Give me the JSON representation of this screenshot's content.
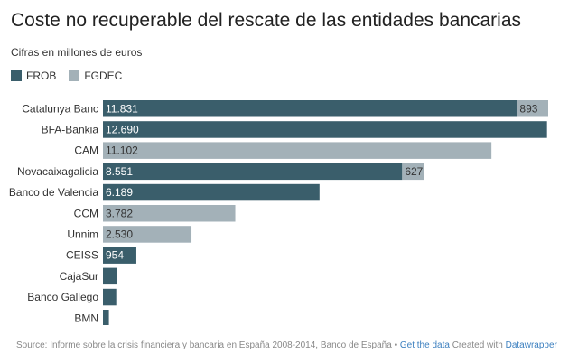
{
  "title": "Coste no recuperable del rescate de las entidades bancarias",
  "subtitle": "Cifras en millones de euros",
  "colors": {
    "FROB": "#3a5e6b",
    "FGDEC": "#a3b1b8"
  },
  "footer": {
    "source": "Source: Informe sobre la crisis financiera y bancaria en España 2008-2014, Banco de España",
    "separator": " • ",
    "get_data": "Get the data",
    "created_with": " Created with ",
    "tool": "Datawrapper"
  },
  "chart_data": {
    "type": "bar",
    "orientation": "horizontal",
    "stacked": true,
    "title": "Coste no recuperable del rescate de las entidades bancarias",
    "subtitle": "Cifras en millones de euros",
    "legend_position": "top-left",
    "grid": false,
    "xlim": [
      0,
      12724
    ],
    "categories": [
      "Catalunya Banc",
      "BFA-Bankia",
      "CAM",
      "Novacaixagalicia",
      "Banco de Valencia",
      "CCM",
      "Unnim",
      "CEISS",
      "CajaSur",
      "Banco Gallego",
      "BMN"
    ],
    "series": [
      {
        "name": "FROB",
        "values": [
          11831,
          12690,
          0,
          8551,
          6189,
          0,
          0,
          954,
          392,
          380,
          170
        ],
        "labels": [
          "11.831",
          "12.690",
          "",
          "8.551",
          "6.189",
          "",
          "",
          "954",
          "",
          "",
          ""
        ]
      },
      {
        "name": "FGDEC",
        "values": [
          893,
          0,
          11102,
          627,
          0,
          3782,
          2530,
          0,
          0,
          0,
          0
        ],
        "labels": [
          "893",
          "",
          "11.102",
          "627",
          "",
          "3.782",
          "2.530",
          "",
          "",
          "",
          ""
        ]
      }
    ]
  }
}
